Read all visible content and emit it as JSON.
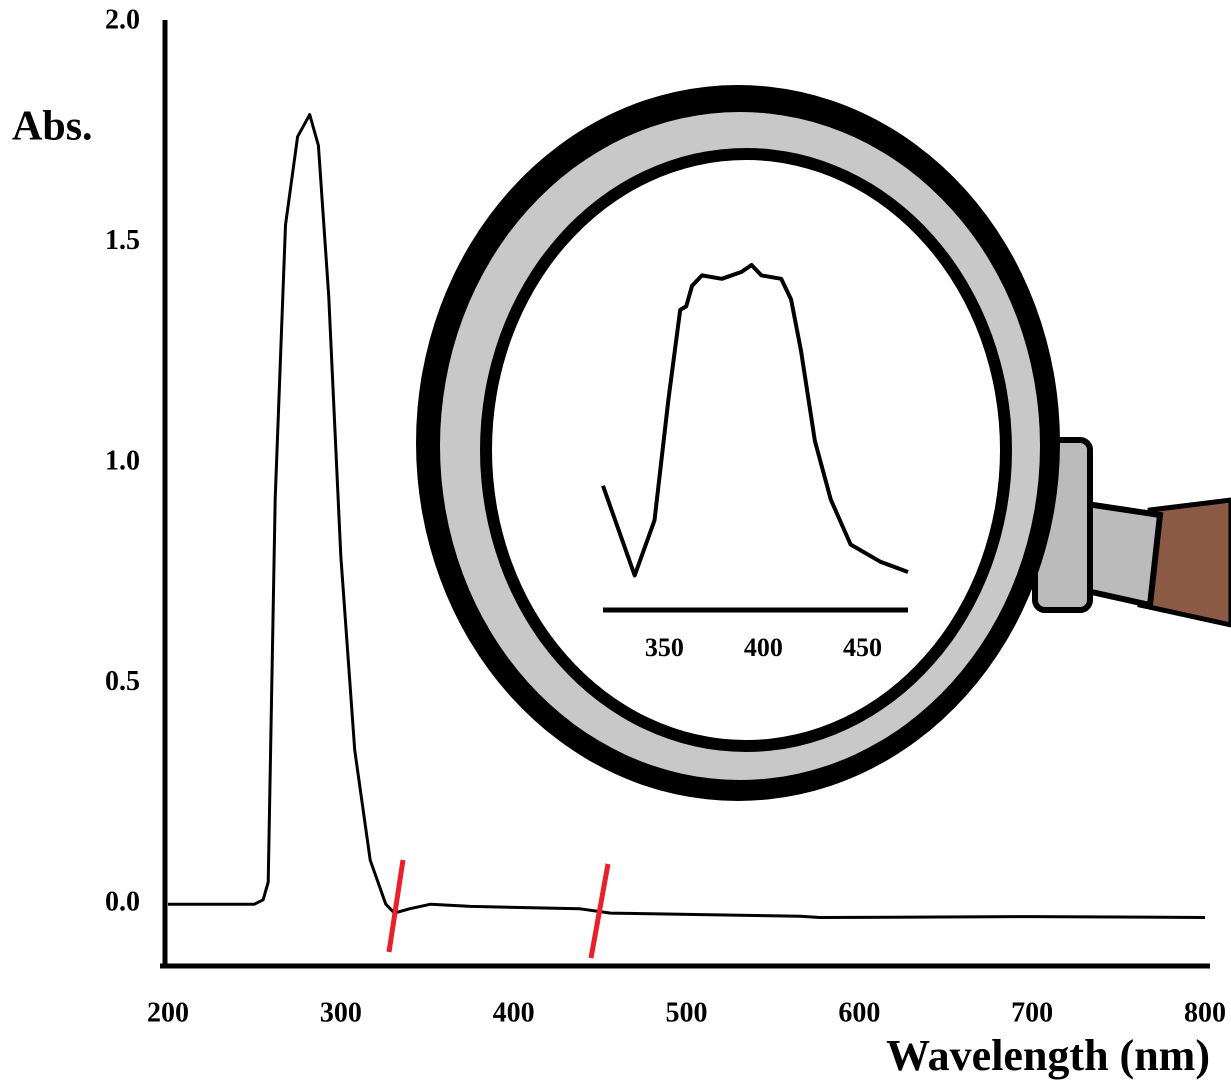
{
  "chart_data": [
    {
      "type": "line",
      "y_label": "Abs.",
      "x_label": "Wavelength (nm)",
      "x": [
        200,
        250,
        255,
        258,
        262,
        268,
        275,
        282,
        287,
        293,
        300,
        308,
        317,
        326,
        331,
        340,
        352,
        375,
        438,
        456,
        566,
        577,
        700,
        800
      ],
      "values": [
        0.0,
        0.0,
        0.01,
        0.05,
        0.92,
        1.54,
        1.74,
        1.79,
        1.72,
        1.38,
        0.79,
        0.35,
        0.1,
        0.0,
        -0.02,
        -0.01,
        0.0,
        -0.005,
        -0.01,
        -0.02,
        -0.027,
        -0.03,
        -0.028,
        -0.03
      ],
      "color": "#000000",
      "xlim": [
        200,
        800
      ],
      "ylim": [
        -0.14,
        2.0
      ],
      "xticks": [
        200,
        300,
        400,
        500,
        600,
        700,
        800
      ],
      "yticks": [
        {
          "value": 0,
          "label": "0.0"
        },
        0.5,
        {
          "value": 1,
          "label": "1.0"
        },
        1.5,
        {
          "value": 2,
          "label": "2.0"
        }
      ]
    },
    {
      "type": "line",
      "x": [
        319,
        335,
        345,
        352,
        358,
        361,
        364,
        369,
        379,
        389,
        394,
        399,
        409,
        414,
        419,
        426,
        434,
        444,
        459,
        473
      ],
      "values": [
        0.36,
        0.1,
        0.26,
        0.61,
        0.87,
        0.88,
        0.94,
        0.97,
        0.96,
        0.98,
        1.0,
        0.97,
        0.96,
        0.9,
        0.75,
        0.49,
        0.32,
        0.19,
        0.14,
        0.11
      ],
      "color": "#000000",
      "xlim": [
        319,
        473
      ],
      "xticks": [
        350,
        400,
        450
      ]
    }
  ]
}
